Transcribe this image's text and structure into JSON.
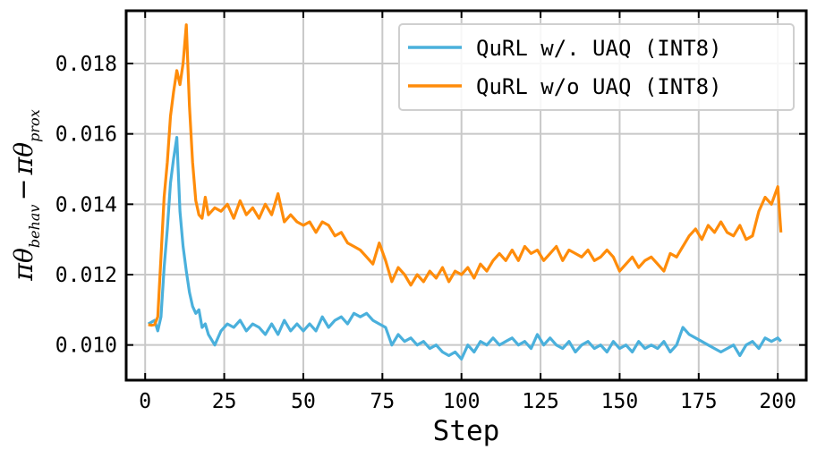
{
  "chart_data": {
    "type": "line",
    "xlabel": "Step",
    "ylabel": "π_{θ_behav} − π_{θ_prox}",
    "ylabel_parts": {
      "pi": "π",
      "theta": "θ",
      "behav": "behav",
      "minus": "−",
      "prox": "prox"
    },
    "xlim": [
      -6,
      209
    ],
    "ylim": [
      0.009,
      0.0195
    ],
    "xticks": [
      0,
      25,
      50,
      75,
      100,
      125,
      150,
      175,
      200
    ],
    "yticks": [
      0.01,
      0.012,
      0.014,
      0.016,
      0.018
    ],
    "xtick_labels": [
      "0",
      "25",
      "50",
      "75",
      "100",
      "125",
      "150",
      "175",
      "200"
    ],
    "ytick_labels": [
      "0.010",
      "0.012",
      "0.014",
      "0.016",
      "0.018"
    ],
    "grid": true,
    "legend_position": "top-right",
    "series": [
      {
        "name": "QuRL w/. UAQ (INT8)",
        "color": "#4ab0dc",
        "x": [
          1,
          2,
          3,
          4,
          5,
          6,
          7,
          8,
          9,
          10,
          11,
          12,
          13,
          14,
          15,
          16,
          17,
          18,
          19,
          20,
          22,
          24,
          26,
          28,
          30,
          32,
          34,
          36,
          38,
          40,
          42,
          44,
          46,
          48,
          50,
          52,
          54,
          56,
          58,
          60,
          62,
          64,
          66,
          68,
          70,
          72,
          74,
          76,
          78,
          80,
          82,
          84,
          86,
          88,
          90,
          92,
          94,
          96,
          98,
          100,
          102,
          104,
          106,
          108,
          110,
          112,
          114,
          116,
          118,
          120,
          122,
          124,
          126,
          128,
          130,
          132,
          134,
          136,
          138,
          140,
          142,
          144,
          146,
          148,
          150,
          152,
          154,
          156,
          158,
          160,
          162,
          164,
          166,
          168,
          170,
          172,
          174,
          176,
          178,
          180,
          182,
          184,
          186,
          188,
          190,
          192,
          194,
          196,
          198,
          200,
          201
        ],
        "values": [
          0.0106,
          0.01065,
          0.0107,
          0.0104,
          0.0108,
          0.0122,
          0.0133,
          0.0146,
          0.0153,
          0.0159,
          0.0138,
          0.0128,
          0.0121,
          0.0115,
          0.0111,
          0.0109,
          0.011,
          0.0105,
          0.0106,
          0.0103,
          0.01,
          0.0104,
          0.0106,
          0.0105,
          0.0107,
          0.0104,
          0.0106,
          0.0105,
          0.0103,
          0.0106,
          0.0103,
          0.0107,
          0.0104,
          0.0106,
          0.0104,
          0.0106,
          0.0104,
          0.0108,
          0.0105,
          0.0107,
          0.0108,
          0.0106,
          0.0109,
          0.0108,
          0.0109,
          0.0107,
          0.0106,
          0.0105,
          0.01,
          0.0103,
          0.0101,
          0.0102,
          0.01,
          0.0101,
          0.0099,
          0.01,
          0.0098,
          0.0097,
          0.0098,
          0.0096,
          0.01,
          0.0098,
          0.0101,
          0.01,
          0.0102,
          0.01,
          0.0101,
          0.0102,
          0.01,
          0.0101,
          0.0099,
          0.0103,
          0.01,
          0.0102,
          0.01,
          0.0099,
          0.0101,
          0.0098,
          0.01,
          0.0101,
          0.0099,
          0.01,
          0.0098,
          0.0101,
          0.0099,
          0.01,
          0.0098,
          0.0101,
          0.0099,
          0.01,
          0.0099,
          0.0101,
          0.0098,
          0.01,
          0.0105,
          0.0103,
          0.0102,
          0.0101,
          0.01,
          0.0099,
          0.0098,
          0.0099,
          0.01,
          0.0097,
          0.01,
          0.0101,
          0.0099,
          0.0102,
          0.0101,
          0.0102,
          0.0101
        ]
      },
      {
        "name": "QuRL w/o UAQ (INT8)",
        "color": "#ff8c0a",
        "x": [
          1,
          2,
          3,
          4,
          5,
          6,
          7,
          8,
          9,
          10,
          11,
          12,
          13,
          14,
          15,
          16,
          17,
          18,
          19,
          20,
          22,
          24,
          26,
          28,
          30,
          32,
          34,
          36,
          38,
          40,
          42,
          44,
          46,
          48,
          50,
          52,
          54,
          56,
          58,
          60,
          62,
          64,
          66,
          68,
          70,
          72,
          74,
          76,
          78,
          80,
          82,
          84,
          86,
          88,
          90,
          92,
          94,
          96,
          98,
          100,
          102,
          104,
          106,
          108,
          110,
          112,
          114,
          116,
          118,
          120,
          122,
          124,
          126,
          128,
          130,
          132,
          134,
          136,
          138,
          140,
          142,
          144,
          146,
          148,
          150,
          152,
          154,
          156,
          158,
          160,
          162,
          164,
          166,
          168,
          170,
          172,
          174,
          176,
          178,
          180,
          182,
          184,
          186,
          188,
          190,
          192,
          194,
          196,
          198,
          200,
          201
        ],
        "values": [
          0.01058,
          0.01056,
          0.01058,
          0.0108,
          0.0125,
          0.0142,
          0.0152,
          0.0165,
          0.0172,
          0.0178,
          0.0174,
          0.018,
          0.0191,
          0.0168,
          0.0152,
          0.0141,
          0.0137,
          0.0136,
          0.0142,
          0.0137,
          0.0139,
          0.0138,
          0.014,
          0.0136,
          0.0141,
          0.0137,
          0.0139,
          0.0136,
          0.014,
          0.0137,
          0.0143,
          0.0135,
          0.0137,
          0.0135,
          0.0134,
          0.0135,
          0.0132,
          0.0135,
          0.0134,
          0.0131,
          0.0132,
          0.0129,
          0.0128,
          0.0127,
          0.0125,
          0.0123,
          0.0129,
          0.0124,
          0.0118,
          0.0122,
          0.012,
          0.0117,
          0.012,
          0.0118,
          0.0121,
          0.0119,
          0.0122,
          0.0118,
          0.0121,
          0.012,
          0.0122,
          0.0119,
          0.0123,
          0.0121,
          0.0124,
          0.0126,
          0.0124,
          0.0127,
          0.0124,
          0.0128,
          0.0126,
          0.0127,
          0.0124,
          0.0126,
          0.0128,
          0.0124,
          0.0127,
          0.0126,
          0.0125,
          0.0127,
          0.0124,
          0.0125,
          0.0127,
          0.0125,
          0.0121,
          0.0123,
          0.0125,
          0.0122,
          0.0124,
          0.0125,
          0.0123,
          0.0121,
          0.0126,
          0.0125,
          0.0128,
          0.0131,
          0.0133,
          0.013,
          0.0134,
          0.0132,
          0.0135,
          0.0132,
          0.0131,
          0.0134,
          0.013,
          0.0131,
          0.0138,
          0.0142,
          0.014,
          0.0145,
          0.0132
        ]
      }
    ]
  }
}
